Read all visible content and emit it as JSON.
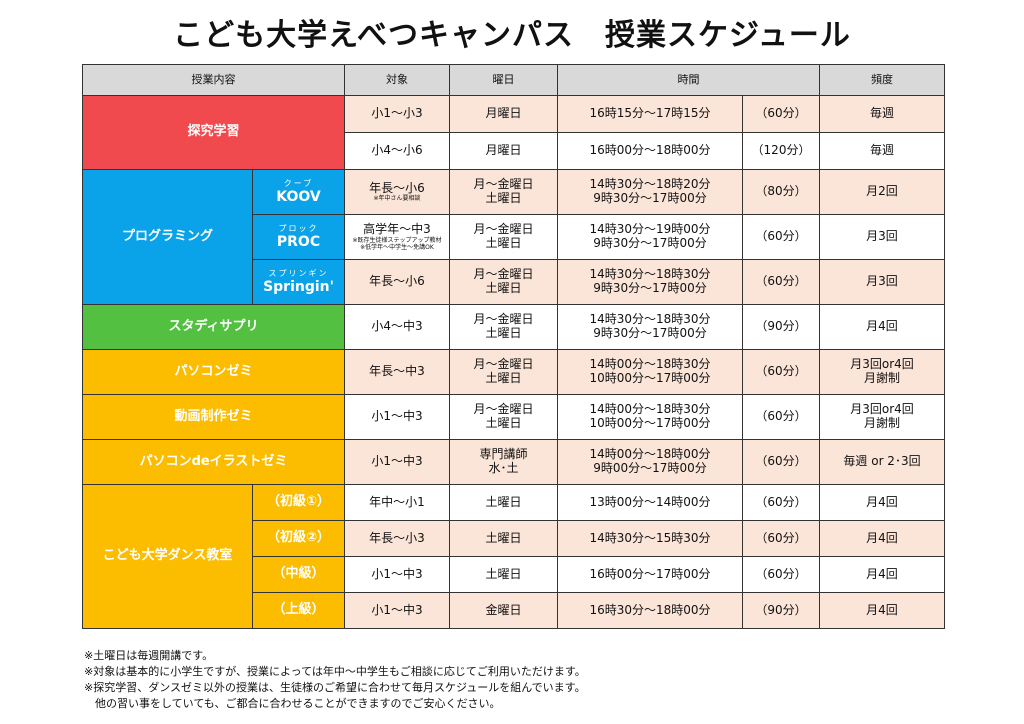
{
  "title": "こども大学えべつキャンパス　授業スケジュール",
  "headers": {
    "course": "授業内容",
    "target": "対象",
    "day": "曜日",
    "time": "時間",
    "freq": "頻度"
  },
  "categories": {
    "tankyu": "探究学習",
    "programming": "プログラミング",
    "studysapuri": "スタディサプリ",
    "pasocon": "パソコンゼミ",
    "douga": "動画制作ゼミ",
    "illust": "パソコンdeイラストゼミ",
    "dance": "こども大学ダンス教室"
  },
  "subs": {
    "koov": {
      "ruby": "クーブ",
      "name": "KOOV"
    },
    "proc": {
      "ruby": "プロック",
      "name": "PROC"
    },
    "springin": {
      "ruby": "スプリンギン",
      "name": "Springin'"
    },
    "dance1": "（初級①）",
    "dance2": "（初級②）",
    "dance3": "（中級）",
    "dance4": "（上級）"
  },
  "rows": [
    {
      "target": "小1～小3",
      "day1": "月曜日",
      "day2": "",
      "time1": "16時15分～17時15分",
      "time2": "",
      "duration": "（60分）",
      "freq1": "毎週",
      "freq2": ""
    },
    {
      "target": "小4～小6",
      "day1": "月曜日",
      "day2": "",
      "time1": "16時00分～18時00分",
      "time2": "",
      "duration": "（120分）",
      "freq1": "毎週",
      "freq2": ""
    },
    {
      "target": "年長～小6",
      "note1": "※年中さん要相談",
      "note2": "",
      "day1": "月～金曜日",
      "day2": "土曜日",
      "time1": "14時30分～18時20分",
      "time2": "9時30分～17時00分",
      "duration": "（80分）",
      "freq1": "月2回",
      "freq2": ""
    },
    {
      "target": "高学年～中3",
      "note1": "※既存生徒様ステップアップ教材",
      "note2": "※低学年～中学生～免講OK",
      "day1": "月～金曜日",
      "day2": "土曜日",
      "time1": "14時30分～19時00分",
      "time2": "9時30分～17時00分",
      "duration": "（60分）",
      "freq1": "月3回",
      "freq2": ""
    },
    {
      "target": "年長～小6",
      "day1": "月～金曜日",
      "day2": "土曜日",
      "time1": "14時30分～18時30分",
      "time2": "9時30分～17時00分",
      "duration": "（60分）",
      "freq1": "月3回",
      "freq2": ""
    },
    {
      "target": "小4～中3",
      "day1": "月～金曜日",
      "day2": "土曜日",
      "time1": "14時30分～18時30分",
      "time2": "9時30分～17時00分",
      "duration": "（90分）",
      "freq1": "月4回",
      "freq2": ""
    },
    {
      "target": "年長～中3",
      "day1": "月～金曜日",
      "day2": "土曜日",
      "time1": "14時00分～18時30分",
      "time2": "10時00分～17時00分",
      "duration": "（60分）",
      "freq1": "月3回or4回",
      "freq2": "月謝制"
    },
    {
      "target": "小1～中3",
      "day1": "月～金曜日",
      "day2": "土曜日",
      "time1": "14時00分～18時30分",
      "time2": "10時00分～17時00分",
      "duration": "（60分）",
      "freq1": "月3回or4回",
      "freq2": "月謝制"
    },
    {
      "target": "小1～中3",
      "day1": "専門講師",
      "day2": "水･土",
      "time1": "14時00分～18時00分",
      "time2": "9時00分～17時00分",
      "duration": "（60分）",
      "freq1": "毎週 or 2･3回",
      "freq2": ""
    },
    {
      "target": "年中～小1",
      "day1": "土曜日",
      "day2": "",
      "time1": "13時00分～14時00分",
      "time2": "",
      "duration": "（60分）",
      "freq1": "月4回",
      "freq2": ""
    },
    {
      "target": "年長～小3",
      "day1": "土曜日",
      "day2": "",
      "time1": "14時30分～15時30分",
      "time2": "",
      "duration": "（60分）",
      "freq1": "月4回",
      "freq2": ""
    },
    {
      "target": "小1～中3",
      "day1": "土曜日",
      "day2": "",
      "time1": "16時00分～17時00分",
      "time2": "",
      "duration": "（60分）",
      "freq1": "月4回",
      "freq2": ""
    },
    {
      "target": "小1～中3",
      "day1": "金曜日",
      "day2": "",
      "time1": "16時30分～18時00分",
      "time2": "",
      "duration": "（90分）",
      "freq1": "月4回",
      "freq2": ""
    }
  ],
  "notes": [
    "※土曜日は毎週開講です。",
    "※対象は基本的に小学生ですが、授業によっては年中～中学生もご相談に応じてご利用いただけます。",
    "※探究学習、ダンスゼミ以外の授業は、生徒様のご希望に合わせて毎月スケジュールを組んでいます。",
    "　他の習い事をしていても、ご都合に合わせることができますのでご安心ください。"
  ],
  "colors": {
    "red": "#f04a4f",
    "blue": "#0aa2e8",
    "green": "#54c042",
    "orange": "#fcbc00",
    "pink": "#fbe4d8",
    "header": "#d9d9d9"
  }
}
